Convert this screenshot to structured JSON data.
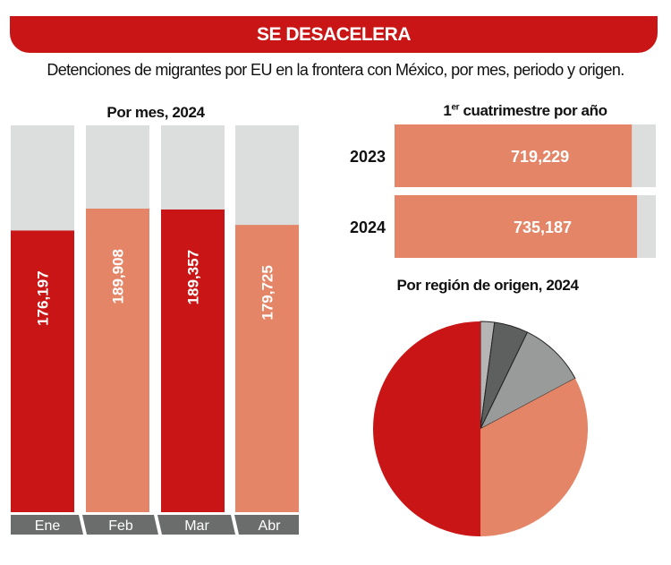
{
  "header": {
    "title": "SE DESACELERA",
    "subtitle": "Detenciones de migrantes por EU en la frontera con México, por mes, periodo y origen."
  },
  "colors": {
    "red": "#c91515",
    "salmon": "#e38566",
    "track": "#dcdddd",
    "axis_band": "#6b6c6c"
  },
  "chart_data": [
    {
      "type": "bar",
      "orientation": "vertical",
      "title": "Por mes, 2024",
      "categories": [
        "Ene",
        "Feb",
        "Mar",
        "Abr"
      ],
      "values": [
        176197,
        189908,
        189357,
        179725
      ],
      "labels": [
        "176,197",
        "189,908",
        "189,357",
        "179,725"
      ],
      "bar_colors": [
        "#c91515",
        "#e38566",
        "#c91515",
        "#e38566"
      ],
      "ylim": [
        0,
        242000
      ]
    },
    {
      "type": "bar",
      "orientation": "horizontal",
      "title_main": "1",
      "title_sup": "er",
      "title_rest": " cuatrimestre por año",
      "categories": [
        "2023",
        "2024"
      ],
      "values": [
        719229,
        735187
      ],
      "labels": [
        "719,229",
        "735,187"
      ],
      "xlim": [
        0,
        792000
      ]
    },
    {
      "type": "pie",
      "title": "Por región de origen, 2024",
      "start": "top, clockwise",
      "values": [
        2.1,
        5.1,
        10.0,
        32.8,
        50.0
      ],
      "colors": [
        "#b5b5b5",
        "#5e5f5f",
        "#999a9a",
        "#e38566",
        "#c91515"
      ]
    }
  ]
}
